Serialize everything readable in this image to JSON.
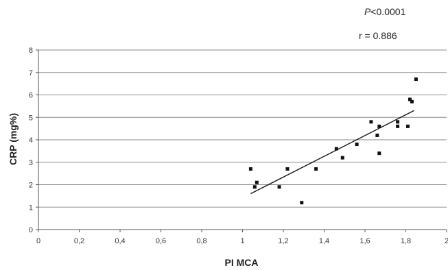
{
  "chart_data": {
    "type": "scatter",
    "title": "",
    "xlabel": "PI MCA",
    "ylabel": "CRP (mg%)",
    "xlim": [
      0,
      2
    ],
    "ylim": [
      0,
      8
    ],
    "x_ticks": [
      "0",
      "0,2",
      "0,4",
      "0,6",
      "0,8",
      "1",
      "1,2",
      "1,4",
      "1,6",
      "1,8",
      "2"
    ],
    "y_ticks": [
      "0",
      "1",
      "2",
      "3",
      "4",
      "5",
      "6",
      "7",
      "8"
    ],
    "grid": "horizontal",
    "annotations": {
      "p_prefix": "P",
      "p_rest": "<0.0001",
      "r": "r = 0.886"
    },
    "points": [
      {
        "x": 1.04,
        "y": 2.7
      },
      {
        "x": 1.06,
        "y": 1.9
      },
      {
        "x": 1.07,
        "y": 2.1
      },
      {
        "x": 1.18,
        "y": 1.9
      },
      {
        "x": 1.22,
        "y": 2.7
      },
      {
        "x": 1.29,
        "y": 1.2
      },
      {
        "x": 1.36,
        "y": 2.7
      },
      {
        "x": 1.46,
        "y": 3.6
      },
      {
        "x": 1.49,
        "y": 3.2
      },
      {
        "x": 1.56,
        "y": 3.8
      },
      {
        "x": 1.63,
        "y": 4.8
      },
      {
        "x": 1.66,
        "y": 4.2
      },
      {
        "x": 1.67,
        "y": 4.6
      },
      {
        "x": 1.67,
        "y": 3.4
      },
      {
        "x": 1.76,
        "y": 4.8
      },
      {
        "x": 1.76,
        "y": 4.6
      },
      {
        "x": 1.81,
        "y": 4.6
      },
      {
        "x": 1.82,
        "y": 5.8
      },
      {
        "x": 1.83,
        "y": 5.7
      },
      {
        "x": 1.85,
        "y": 6.7
      }
    ],
    "trendline": {
      "x": [
        1.04,
        1.84
      ],
      "y": [
        1.6,
        5.3
      ]
    }
  }
}
